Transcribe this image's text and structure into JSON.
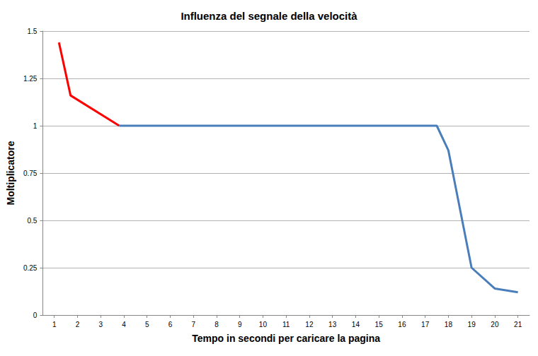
{
  "chart_data": {
    "type": "line",
    "title": "Influenza del segnale della velocità",
    "x_label": "Tempo in secondi per caricare la pagina",
    "y_label": "Moltiplicatore",
    "xlim": [
      0.5,
      21.5
    ],
    "xticks": [
      1,
      2,
      3,
      4,
      5,
      6,
      7,
      8,
      9,
      10,
      11,
      12,
      13,
      14,
      15,
      16,
      17,
      18,
      19,
      20,
      21
    ],
    "ylim": [
      0,
      1.5
    ],
    "yticks": [
      0,
      0.25,
      0.5,
      0.75,
      1,
      1.25,
      1.5
    ],
    "grid": true,
    "marker": "none",
    "series": [
      {
        "color": "#ff0000",
        "x": [
          1.2,
          1.7,
          3.8
        ],
        "values": [
          1.44,
          1.16,
          1.0
        ]
      },
      {
        "color": "#4a7ebb",
        "x": [
          3.8,
          17.5,
          18,
          19,
          20,
          21
        ],
        "values": [
          1.0,
          1.0,
          0.87,
          0.25,
          0.14,
          0.12
        ]
      }
    ]
  }
}
